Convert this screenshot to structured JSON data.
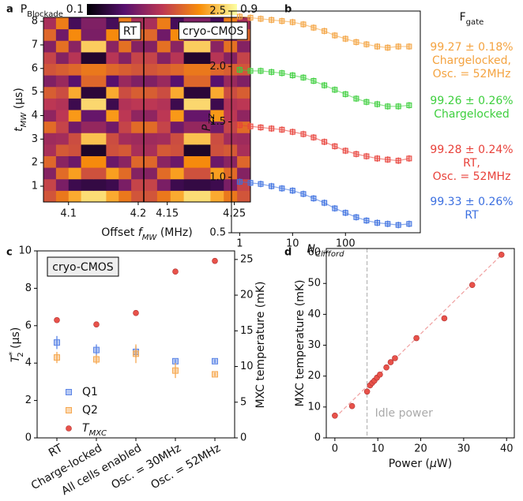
{
  "chart_data": [
    {
      "type": "heatmap",
      "letter": "a",
      "colorbar": {
        "label": [
          "P",
          "Blockade"
        ],
        "colormap": "inferno",
        "lim": [
          0.1,
          0.9
        ],
        "ticks": [
          0.1,
          0.9
        ]
      },
      "ylabel": [
        "t",
        "MW",
        " (μs)"
      ],
      "xlabel": [
        "Offset ",
        "f",
        "MW",
        " (MHz)"
      ],
      "ylim": [
        0.33,
        8.17
      ],
      "yticks": [
        1,
        2,
        3,
        4,
        5,
        6,
        7,
        8
      ],
      "panels": [
        {
          "label": "RT",
          "xlim": [
            4.064,
            4.208
          ],
          "xticks": [
            4.1,
            4.2
          ],
          "z": [
            [
              0.57,
              0.65,
              0.75,
              0.84,
              0.84,
              0.75,
              0.65,
              0.57
            ],
            [
              0.53,
              0.37,
              0.24,
              0.22,
              0.22,
              0.24,
              0.37,
              0.53
            ],
            [
              0.39,
              0.62,
              0.73,
              0.56,
              0.56,
              0.73,
              0.62,
              0.39
            ],
            [
              0.61,
              0.4,
              0.34,
              0.69,
              0.69,
              0.34,
              0.4,
              0.61
            ],
            [
              0.46,
              0.58,
              0.56,
              0.17,
              0.17,
              0.56,
              0.58,
              0.46
            ],
            [
              0.44,
              0.45,
              0.55,
              0.79,
              0.79,
              0.55,
              0.45,
              0.44
            ],
            [
              0.62,
              0.53,
              0.35,
              0.42,
              0.42,
              0.35,
              0.53,
              0.62
            ],
            [
              0.41,
              0.5,
              0.72,
              0.33,
              0.33,
              0.72,
              0.5,
              0.41
            ],
            [
              0.5,
              0.48,
              0.24,
              0.83,
              0.83,
              0.24,
              0.48,
              0.5
            ],
            [
              0.59,
              0.55,
              0.75,
              0.2,
              0.2,
              0.75,
              0.55,
              0.59
            ],
            [
              0.38,
              0.43,
              0.3,
              0.61,
              0.61,
              0.3,
              0.43,
              0.38
            ],
            [
              0.57,
              0.59,
              0.61,
              0.65,
              0.65,
              0.61,
              0.59,
              0.57
            ],
            [
              0.53,
              0.39,
              0.49,
              0.18,
              0.18,
              0.49,
              0.39,
              0.53
            ],
            [
              0.39,
              0.63,
              0.4,
              0.81,
              0.81,
              0.4,
              0.63,
              0.39
            ],
            [
              0.61,
              0.35,
              0.69,
              0.37,
              0.37,
              0.69,
              0.35,
              0.61
            ],
            [
              0.46,
              0.66,
              0.26,
              0.38,
              0.38,
              0.26,
              0.66,
              0.46
            ]
          ]
        },
        {
          "label": "cryo-CMOS",
          "xlim": [
            4.115,
            4.274
          ],
          "xticks": [
            4.15,
            4.25
          ],
          "z": [
            [
              0.57,
              0.65,
              0.75,
              0.84,
              0.84,
              0.75,
              0.65,
              0.57
            ],
            [
              0.53,
              0.37,
              0.24,
              0.22,
              0.22,
              0.24,
              0.37,
              0.53
            ],
            [
              0.39,
              0.62,
              0.73,
              0.56,
              0.56,
              0.73,
              0.62,
              0.39
            ],
            [
              0.61,
              0.4,
              0.34,
              0.69,
              0.69,
              0.34,
              0.4,
              0.61
            ],
            [
              0.46,
              0.58,
              0.56,
              0.17,
              0.17,
              0.56,
              0.58,
              0.46
            ],
            [
              0.44,
              0.45,
              0.55,
              0.79,
              0.79,
              0.55,
              0.45,
              0.44
            ],
            [
              0.62,
              0.53,
              0.35,
              0.42,
              0.42,
              0.35,
              0.53,
              0.62
            ],
            [
              0.41,
              0.5,
              0.72,
              0.33,
              0.33,
              0.72,
              0.5,
              0.41
            ],
            [
              0.5,
              0.48,
              0.24,
              0.83,
              0.83,
              0.24,
              0.48,
              0.5
            ],
            [
              0.59,
              0.55,
              0.75,
              0.2,
              0.2,
              0.75,
              0.55,
              0.59
            ],
            [
              0.38,
              0.43,
              0.3,
              0.61,
              0.61,
              0.3,
              0.43,
              0.38
            ],
            [
              0.57,
              0.59,
              0.61,
              0.65,
              0.65,
              0.61,
              0.59,
              0.57
            ],
            [
              0.53,
              0.39,
              0.49,
              0.18,
              0.18,
              0.49,
              0.39,
              0.53
            ],
            [
              0.39,
              0.63,
              0.4,
              0.81,
              0.81,
              0.4,
              0.63,
              0.39
            ],
            [
              0.61,
              0.35,
              0.69,
              0.37,
              0.37,
              0.69,
              0.35,
              0.61
            ],
            [
              0.46,
              0.66,
              0.26,
              0.38,
              0.38,
              0.26,
              0.66,
              0.46
            ]
          ]
        }
      ]
    },
    {
      "type": "scatter",
      "letter": "b",
      "xlog": true,
      "xlabel": [
        "N",
        "Clifford"
      ],
      "ylabel": [
        "P",
        "ZZ"
      ],
      "legend_title": [
        "F",
        "gate"
      ],
      "xlim": [
        0.7,
        2600
      ],
      "xticks": [
        1,
        10,
        100
      ],
      "ylim": [
        0.5,
        2.5
      ],
      "yticks": [
        0.5,
        {
          "value": 1,
          "label": "1.0"
        },
        1.5,
        {
          "value": 2,
          "label": "2.0"
        },
        2.5
      ],
      "x": [
        1,
        1.6,
        2.5,
        4,
        6.3,
        10,
        16,
        25,
        40,
        63,
        100,
        160,
        250,
        400,
        630,
        1000,
        1600
      ],
      "series": [
        {
          "name": "99.27 ± 0.18%\nChargelocked,\nOsc. = 52MHz",
          "color": "#f4a340",
          "error": 0.03,
          "values": [
            2.45,
            2.44,
            2.43,
            2.42,
            2.41,
            2.4,
            2.38,
            2.35,
            2.32,
            2.28,
            2.25,
            2.22,
            2.2,
            2.18,
            2.17,
            2.18,
            2.18
          ]
        },
        {
          "name": "99.26 ± 0.26%\nChargelocked",
          "color": "#3ecf3e",
          "error": 0.03,
          "values": [
            1.97,
            1.96,
            1.96,
            1.95,
            1.94,
            1.92,
            1.9,
            1.87,
            1.83,
            1.79,
            1.75,
            1.71,
            1.68,
            1.66,
            1.64,
            1.64,
            1.65
          ]
        },
        {
          "name": "99.28 ± 0.24%\nRT,\nOsc. = 52MHz",
          "color": "#e8413a",
          "error": 0.03,
          "values": [
            1.47,
            1.46,
            1.45,
            1.44,
            1.43,
            1.41,
            1.39,
            1.36,
            1.32,
            1.28,
            1.24,
            1.21,
            1.19,
            1.17,
            1.16,
            1.15,
            1.17
          ]
        },
        {
          "name": "99.33 ± 0.26%\nRT",
          "color": "#3b6fe0",
          "error": 0.03,
          "values": [
            0.96,
            0.95,
            0.94,
            0.92,
            0.9,
            0.88,
            0.85,
            0.81,
            0.77,
            0.72,
            0.68,
            0.64,
            0.61,
            0.59,
            0.58,
            0.57,
            0.58
          ]
        }
      ]
    },
    {
      "type": "category-scatter",
      "letter": "c",
      "box_label": "cryo-CMOS",
      "ylabel": [
        "T",
        "*",
        "2",
        " (μs)"
      ],
      "y2label": "MXC temperature (mK)",
      "categories": [
        "RT",
        "Charge-locked",
        "All cells enabled",
        "Osc. = 30MHz",
        "Osc. = 52MHz"
      ],
      "ylim": [
        0,
        10
      ],
      "yticks": [
        0,
        2,
        4,
        6,
        8,
        10
      ],
      "y2lim": [
        0,
        26.2
      ],
      "y2ticks": [
        0,
        5,
        10,
        15,
        20,
        25
      ],
      "series": [
        {
          "name": [
            "Q1"
          ],
          "color": "#5b84e6",
          "marker": "square",
          "values": [
            5.1,
            4.7,
            4.6,
            4.1,
            4.1
          ],
          "errors": [
            0.35,
            0.3,
            0.3,
            0.1,
            0.1
          ]
        },
        {
          "name": [
            "Q2"
          ],
          "color": "#f6a850",
          "marker": "square",
          "values": [
            4.3,
            4.2,
            4.5,
            3.6,
            3.4
          ],
          "errors": [
            0.3,
            0.25,
            0.5,
            0.4,
            0.1
          ]
        },
        {
          "name": [
            "T",
            "MXC"
          ],
          "color": "#e8524a",
          "marker": "circle",
          "axis": "y2",
          "values": [
            16.5,
            15.9,
            17.5,
            23.3,
            24.8
          ]
        }
      ]
    },
    {
      "type": "scatter",
      "letter": "d",
      "xlabel": [
        "Power (",
        "μ",
        "W)"
      ],
      "ylabel": "MXC temperature (mK)",
      "xlim": [
        -2,
        41.8
      ],
      "xticks": [
        0,
        10,
        20,
        30,
        40
      ],
      "ylim": [
        0,
        61.3
      ],
      "yticks": [
        0,
        10,
        20,
        30,
        40,
        50,
        60
      ],
      "x": [
        0,
        4,
        7.5,
        8.2,
        8.7,
        9.2,
        9.8,
        10.5,
        12,
        13,
        14,
        19,
        25.5,
        32,
        38.8
      ],
      "values": [
        7.2,
        10.3,
        15,
        17,
        17.8,
        18.5,
        19.5,
        20.5,
        22.8,
        24.5,
        25.8,
        32.3,
        38.7,
        49.5,
        59.3
      ],
      "color": "#e8524a",
      "fit": {
        "x": [
          0,
          39
        ],
        "values": [
          6.5,
          59.5
        ],
        "color": "#f0a0a0"
      },
      "vline": {
        "x": 7.5,
        "label": "Idle power",
        "color": "#aaaaaa"
      }
    }
  ]
}
